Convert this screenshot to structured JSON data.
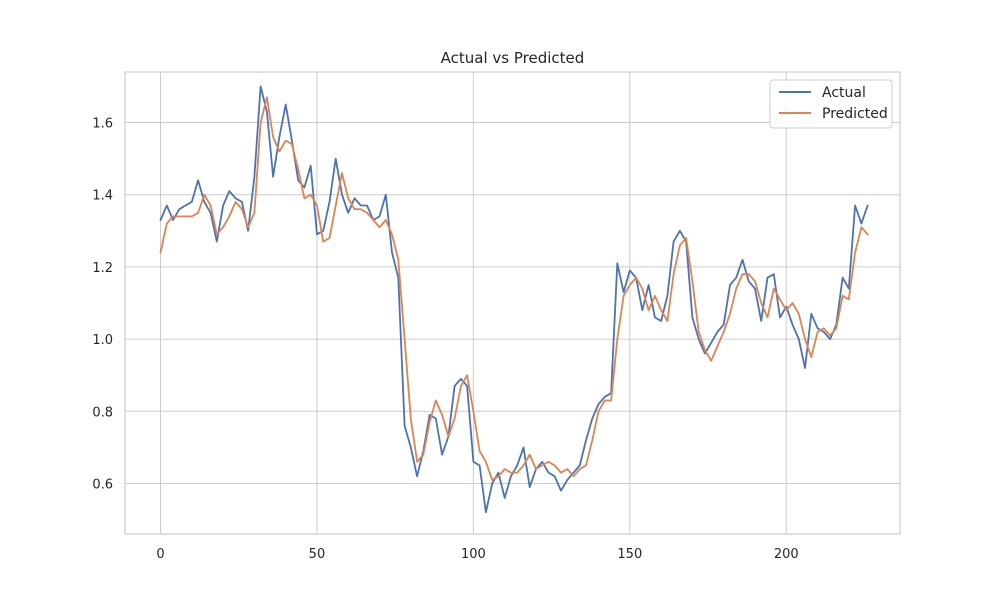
{
  "chart_data": {
    "type": "line",
    "title": "Actual vs Predicted",
    "xlabel": "",
    "ylabel": "",
    "xlim": [
      -11.35,
      236.35
    ],
    "ylim": [
      0.46,
      1.74
    ],
    "xticks": [
      0,
      50,
      100,
      150,
      200
    ],
    "yticks": [
      0.6,
      0.8,
      1.0,
      1.2,
      1.4,
      1.6
    ],
    "grid": true,
    "legend_position": "upper right",
    "colors": {
      "Actual": "#4C72B0",
      "Predicted": "#DD8452",
      "grid": "#cccccc",
      "axes": "#cccccc"
    },
    "series": [
      {
        "name": "Actual",
        "x": [
          0,
          2,
          4,
          6,
          8,
          10,
          12,
          14,
          16,
          18,
          20,
          22,
          24,
          26,
          28,
          30,
          32,
          34,
          36,
          38,
          40,
          42,
          44,
          46,
          48,
          50,
          52,
          54,
          56,
          58,
          60,
          62,
          64,
          66,
          68,
          70,
          72,
          74,
          76,
          78,
          80,
          82,
          84,
          86,
          88,
          90,
          92,
          94,
          96,
          98,
          100,
          102,
          104,
          106,
          108,
          110,
          112,
          114,
          116,
          118,
          120,
          122,
          124,
          126,
          128,
          130,
          132,
          134,
          136,
          138,
          140,
          142,
          144,
          146,
          148,
          150,
          152,
          154,
          156,
          158,
          160,
          162,
          164,
          166,
          168,
          170,
          172,
          174,
          176,
          178,
          180,
          182,
          184,
          186,
          188,
          190,
          192,
          194,
          196,
          198,
          200,
          202,
          204,
          206,
          208,
          210,
          212,
          214,
          216,
          218,
          220,
          222,
          224,
          226
        ],
        "y": [
          1.33,
          1.37,
          1.33,
          1.36,
          1.37,
          1.38,
          1.44,
          1.38,
          1.35,
          1.27,
          1.37,
          1.41,
          1.39,
          1.38,
          1.3,
          1.45,
          1.7,
          1.63,
          1.45,
          1.56,
          1.65,
          1.55,
          1.44,
          1.42,
          1.48,
          1.29,
          1.3,
          1.38,
          1.5,
          1.4,
          1.35,
          1.39,
          1.37,
          1.37,
          1.33,
          1.34,
          1.4,
          1.24,
          1.17,
          0.76,
          0.7,
          0.62,
          0.69,
          0.79,
          0.78,
          0.68,
          0.73,
          0.87,
          0.89,
          0.87,
          0.66,
          0.65,
          0.52,
          0.6,
          0.63,
          0.56,
          0.62,
          0.65,
          0.7,
          0.59,
          0.64,
          0.66,
          0.63,
          0.62,
          0.58,
          0.61,
          0.63,
          0.65,
          0.72,
          0.78,
          0.82,
          0.84,
          0.85,
          1.21,
          1.13,
          1.19,
          1.17,
          1.08,
          1.15,
          1.06,
          1.05,
          1.12,
          1.27,
          1.3,
          1.27,
          1.06,
          1.0,
          0.96,
          0.99,
          1.02,
          1.04,
          1.15,
          1.17,
          1.22,
          1.16,
          1.14,
          1.05,
          1.17,
          1.18,
          1.06,
          1.09,
          1.04,
          1.0,
          0.92,
          1.07,
          1.03,
          1.02,
          1.0,
          1.04,
          1.17,
          1.14,
          1.37,
          1.32,
          1.37
        ]
      },
      {
        "name": "Predicted",
        "x": [
          0,
          2,
          4,
          6,
          8,
          10,
          12,
          14,
          16,
          18,
          20,
          22,
          24,
          26,
          28,
          30,
          32,
          34,
          36,
          38,
          40,
          42,
          44,
          46,
          48,
          50,
          52,
          54,
          56,
          58,
          60,
          62,
          64,
          66,
          68,
          70,
          72,
          74,
          76,
          78,
          80,
          82,
          84,
          86,
          88,
          90,
          92,
          94,
          96,
          98,
          100,
          102,
          104,
          106,
          108,
          110,
          112,
          114,
          116,
          118,
          120,
          122,
          124,
          126,
          128,
          130,
          132,
          134,
          136,
          138,
          140,
          142,
          144,
          146,
          148,
          150,
          152,
          154,
          156,
          158,
          160,
          162,
          164,
          166,
          168,
          170,
          172,
          174,
          176,
          178,
          180,
          182,
          184,
          186,
          188,
          190,
          192,
          194,
          196,
          198,
          200,
          202,
          204,
          206,
          208,
          210,
          212,
          214,
          216,
          218,
          220,
          222,
          224,
          226
        ],
        "y": [
          1.24,
          1.32,
          1.34,
          1.34,
          1.34,
          1.34,
          1.35,
          1.4,
          1.37,
          1.29,
          1.31,
          1.34,
          1.38,
          1.36,
          1.31,
          1.35,
          1.6,
          1.67,
          1.56,
          1.52,
          1.55,
          1.54,
          1.47,
          1.39,
          1.4,
          1.37,
          1.27,
          1.28,
          1.37,
          1.46,
          1.39,
          1.36,
          1.36,
          1.35,
          1.33,
          1.31,
          1.33,
          1.29,
          1.22,
          1.0,
          0.78,
          0.66,
          0.68,
          0.77,
          0.83,
          0.79,
          0.73,
          0.78,
          0.87,
          0.9,
          0.8,
          0.69,
          0.66,
          0.61,
          0.62,
          0.64,
          0.63,
          0.63,
          0.65,
          0.68,
          0.64,
          0.65,
          0.66,
          0.65,
          0.63,
          0.64,
          0.62,
          0.64,
          0.65,
          0.72,
          0.8,
          0.83,
          0.83,
          1.0,
          1.12,
          1.15,
          1.17,
          1.14,
          1.08,
          1.12,
          1.08,
          1.05,
          1.18,
          1.26,
          1.28,
          1.16,
          1.02,
          0.97,
          0.94,
          0.98,
          1.02,
          1.07,
          1.14,
          1.18,
          1.18,
          1.16,
          1.1,
          1.06,
          1.14,
          1.11,
          1.08,
          1.1,
          1.07,
          1.0,
          0.95,
          1.02,
          1.03,
          1.01,
          1.03,
          1.12,
          1.11,
          1.24,
          1.31,
          1.29
        ]
      }
    ]
  }
}
